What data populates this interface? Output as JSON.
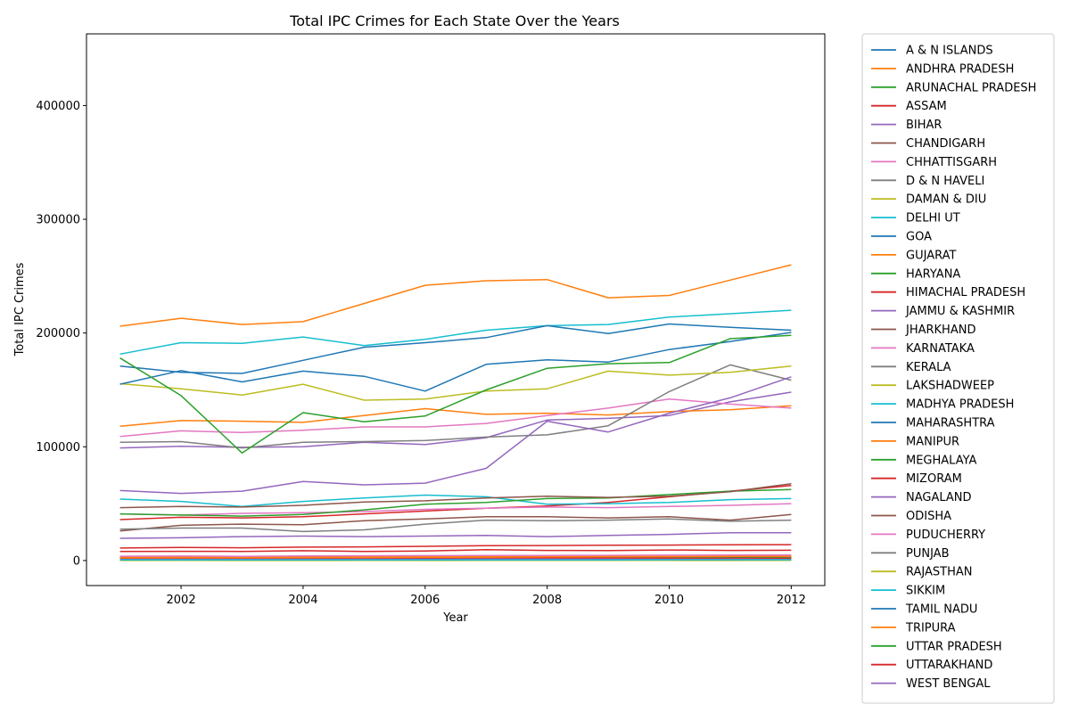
{
  "chart_data": {
    "type": "line",
    "title": "Total IPC Crimes for Each State Over the Years",
    "xlabel": "Year",
    "ylabel": "Total IPC Crimes",
    "xlim": [
      2000.45,
      2012.55
    ],
    "ylim": [
      -22000,
      463000
    ],
    "xticks": [
      2002,
      2004,
      2006,
      2008,
      2010,
      2012
    ],
    "yticks": [
      0,
      100000,
      200000,
      300000,
      400000
    ],
    "x": [
      2001,
      2002,
      2003,
      2004,
      2005,
      2006,
      2007,
      2008,
      2009,
      2010,
      2011,
      2012
    ],
    "legend_position": "outside-right",
    "grid": false,
    "series": [
      {
        "name": "A & N ISLANDS",
        "color": "#1f77b4",
        "values": [
          700,
          650,
          600,
          650,
          700,
          720,
          750,
          780,
          800,
          780,
          760,
          740
        ]
      },
      {
        "name": "ANDHRA PRADESH",
        "color": "#ff7f0e",
        "values": [
          206000,
          213000,
          207500,
          210000,
          226000,
          242000,
          246000,
          247000,
          231000,
          233000,
          246500,
          260000
        ]
      },
      {
        "name": "ARUNACHAL PRADESH",
        "color": "#2ca02c",
        "values": [
          2300,
          2400,
          2200,
          2300,
          2400,
          2500,
          2600,
          2700,
          2600,
          2500,
          2600,
          2700
        ]
      },
      {
        "name": "ASSAM",
        "color": "#d62728",
        "values": [
          36000,
          38000,
          37500,
          38500,
          41000,
          43500,
          46000,
          48000,
          51000,
          56000,
          61000,
          66000
        ]
      },
      {
        "name": "BIHAR",
        "color": "#9467bd",
        "values": [
          99000,
          100500,
          99500,
          100000,
          104000,
          102000,
          108000,
          123500,
          125000,
          127500,
          139500,
          148000
        ]
      },
      {
        "name": "CHANDIGARH",
        "color": "#8c564b",
        "values": [
          3300,
          3400,
          3300,
          3200,
          3500,
          3600,
          3700,
          3500,
          3400,
          3300,
          3200,
          3300
        ]
      },
      {
        "name": "CHHATTISGARH",
        "color": "#e377c2",
        "values": [
          41000,
          40000,
          41500,
          42000,
          43000,
          45000,
          46000,
          47000,
          46500,
          47500,
          48500,
          50000
        ]
      },
      {
        "name": "D & N HAVELI",
        "color": "#7f7f7f",
        "values": [
          400,
          380,
          390,
          400,
          420,
          430,
          440,
          450,
          460,
          450,
          440,
          430
        ]
      },
      {
        "name": "DAMAN & DIU",
        "color": "#bcbd22",
        "values": [
          300,
          290,
          280,
          300,
          310,
          320,
          330,
          340,
          350,
          340,
          330,
          320
        ]
      },
      {
        "name": "DELHI UT",
        "color": "#17becf",
        "values": [
          54000,
          52000,
          47500,
          52000,
          55000,
          57500,
          56000,
          49500,
          50000,
          51000,
          53500,
          54500
        ]
      },
      {
        "name": "GOA",
        "color": "#1f77b4",
        "values": [
          2200,
          2300,
          2200,
          2400,
          2500,
          2600,
          2700,
          2800,
          2900,
          3000,
          3100,
          3200
        ]
      },
      {
        "name": "GUJARAT",
        "color": "#ff7f0e",
        "values": [
          118000,
          123000,
          122500,
          121500,
          127500,
          133500,
          128500,
          129500,
          128000,
          131000,
          132500,
          136000
        ]
      },
      {
        "name": "HARYANA",
        "color": "#2ca02c",
        "values": [
          41000,
          40000,
          39000,
          40500,
          44500,
          49500,
          51000,
          54500,
          55000,
          58000,
          61000,
          62500
        ]
      },
      {
        "name": "HIMACHAL PRADESH",
        "color": "#d62728",
        "values": [
          11000,
          11500,
          11200,
          11800,
          12000,
          12500,
          13000,
          13200,
          13500,
          13600,
          13800,
          14000
        ]
      },
      {
        "name": "JAMMU & KASHMIR",
        "color": "#9467bd",
        "values": [
          19500,
          20000,
          21000,
          21500,
          21000,
          21500,
          22000,
          21000,
          22000,
          23000,
          24500,
          24500
        ]
      },
      {
        "name": "JHARKHAND",
        "color": "#8c564b",
        "values": [
          26000,
          31000,
          32000,
          31500,
          35000,
          36500,
          38500,
          38500,
          37500,
          38500,
          35500,
          40500
        ]
      },
      {
        "name": "KARNATAKA",
        "color": "#e377c2",
        "values": [
          109000,
          114000,
          112500,
          114500,
          117500,
          117500,
          120500,
          127500,
          134000,
          142000,
          137500,
          134000
        ]
      },
      {
        "name": "KERALA",
        "color": "#7f7f7f",
        "values": [
          104000,
          104500,
          99000,
          104000,
          104500,
          105500,
          108500,
          110500,
          118500,
          148500,
          172000,
          158500
        ]
      },
      {
        "name": "LAKSHADWEEP",
        "color": "#bcbd22",
        "values": [
          50,
          60,
          55,
          50,
          60,
          55,
          60,
          70,
          65,
          60,
          55,
          60
        ]
      },
      {
        "name": "MADHYA PRADESH",
        "color": "#17becf",
        "values": [
          181500,
          191500,
          191000,
          196500,
          189000,
          194500,
          202500,
          206500,
          207500,
          214000,
          217000,
          220000
        ]
      },
      {
        "name": "MAHARASHTRA",
        "color": "#1f77b4",
        "values": [
          171000,
          165500,
          164500,
          176000,
          187500,
          191500,
          196000,
          206500,
          199500,
          208000,
          205000,
          202500
        ]
      },
      {
        "name": "MANIPUR",
        "color": "#ff7f0e",
        "values": [
          2900,
          3000,
          2800,
          3100,
          3200,
          3300,
          3400,
          3500,
          3600,
          3500,
          3400,
          3300
        ]
      },
      {
        "name": "MEGHALAYA",
        "color": "#2ca02c",
        "values": [
          1800,
          1900,
          1850,
          1950,
          2000,
          2100,
          2200,
          2300,
          2350,
          2400,
          2500,
          2600
        ]
      },
      {
        "name": "MIZORAM",
        "color": "#d62728",
        "values": [
          1900,
          1950,
          1900,
          2000,
          2050,
          2100,
          2200,
          2150,
          2100,
          2050,
          2000,
          1950
        ]
      },
      {
        "name": "NAGALAND",
        "color": "#9467bd",
        "values": [
          1000,
          1050,
          1000,
          1100,
          1150,
          1200,
          1250,
          1300,
          1200,
          1150,
          1100,
          1050
        ]
      },
      {
        "name": "ODISHA",
        "color": "#8c564b",
        "values": [
          46500,
          47500,
          47000,
          48500,
          51500,
          52500,
          55000,
          56500,
          55500,
          56500,
          60500,
          67500
        ]
      },
      {
        "name": "PUDUCHERRY",
        "color": "#e377c2",
        "values": [
          3800,
          3900,
          3700,
          4000,
          4200,
          4300,
          4400,
          4500,
          4600,
          4700,
          4800,
          4900
        ]
      },
      {
        "name": "PUNJAB",
        "color": "#7f7f7f",
        "values": [
          27500,
          28500,
          28500,
          25500,
          27000,
          32000,
          35500,
          35000,
          35500,
          36500,
          34500,
          35500
        ]
      },
      {
        "name": "RAJASTHAN",
        "color": "#bcbd22",
        "values": [
          155500,
          151000,
          145500,
          155000,
          141000,
          142000,
          149000,
          151000,
          166500,
          163000,
          165500,
          171000
        ]
      },
      {
        "name": "SIKKIM",
        "color": "#17becf",
        "values": [
          450,
          480,
          460,
          500,
          520,
          540,
          560,
          580,
          600,
          620,
          640,
          660
        ]
      },
      {
        "name": "TAMIL NADU",
        "color": "#1f77b4",
        "values": [
          155000,
          167000,
          157000,
          166500,
          162000,
          149000,
          172500,
          176500,
          174500,
          185500,
          192500,
          200500
        ]
      },
      {
        "name": "TRIPURA",
        "color": "#ff7f0e",
        "values": [
          2400,
          2500,
          2450,
          2600,
          2700,
          2800,
          3000,
          3200,
          3400,
          3500,
          3600,
          3700
        ]
      },
      {
        "name": "UTTAR PRADESH",
        "color": "#2ca02c",
        "values": [
          178000,
          145000,
          94500,
          130000,
          122000,
          127000,
          150000,
          169000,
          173000,
          174000,
          195000,
          198000
        ]
      },
      {
        "name": "UTTARAKHAND",
        "color": "#d62728",
        "values": [
          8000,
          8100,
          8000,
          8600,
          8000,
          8300,
          9600,
          8900,
          8800,
          9300,
          8900,
          9000
        ]
      },
      {
        "name": "WEST BENGAL",
        "color": "#9467bd",
        "values": [
          61500,
          59000,
          61000,
          69500,
          66500,
          68000,
          81000,
          122500,
          113000,
          129500,
          143000,
          161500
        ]
      }
    ]
  }
}
